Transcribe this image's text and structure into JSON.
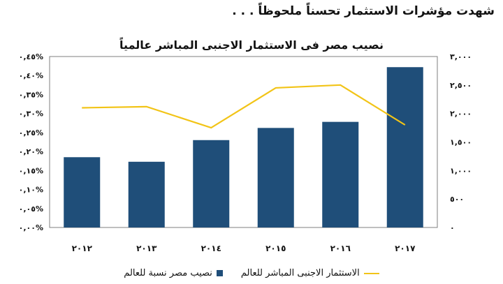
{
  "heading": "شهدت مؤشرات الاستثمار تحسناً ملحوظاً . . .",
  "chart_data": {
    "type": "bar",
    "title": "نصيب مصر فى الاستثمار الاجنبى المباشر عالمياً",
    "categories": [
      "٢٠١٢",
      "٢٠١٣",
      "٢٠١٤",
      "٢٠١٥",
      "٢٠١٦",
      "٢٠١٧"
    ],
    "series": [
      {
        "name": "نصيب مصر نسبة للعالم",
        "kind": "bar",
        "axis": "left",
        "color": "#1f4e79",
        "values": [
          0.185,
          0.173,
          0.23,
          0.262,
          0.278,
          0.422
        ]
      },
      {
        "name": "الاستثمار الاجنبى المباشر للعالم",
        "kind": "line",
        "axis": "right",
        "color": "#f2c417",
        "values": [
          2100,
          2120,
          1750,
          2450,
          2500,
          1800
        ]
      }
    ],
    "left_axis": {
      "ylim": [
        0,
        0.45
      ],
      "tick_values": [
        0,
        0.05,
        0.1,
        0.15,
        0.2,
        0.25,
        0.3,
        0.35,
        0.4,
        0.45
      ],
      "tick_labels": [
        "٠,٠٠%",
        "٠,٠٥%",
        "٠,١٠%",
        "٠,١٥%",
        "٠,٢٠%",
        "٠,٢٥%",
        "٠,٣٠%",
        "٠,٣٥%",
        "٠,٤٠%",
        "٠,٤٥%"
      ]
    },
    "right_axis": {
      "ylim": [
        0,
        3000
      ],
      "tick_values": [
        0,
        500,
        1000,
        1500,
        2000,
        2500,
        3000
      ],
      "tick_labels": [
        "٠",
        "٥٠٠",
        "١,٠٠٠",
        "١,٥٠٠",
        "٢,٠٠٠",
        "٢,٥٠٠",
        "٣,٠٠٠"
      ]
    },
    "grid": false,
    "legend_position": "bottom"
  }
}
